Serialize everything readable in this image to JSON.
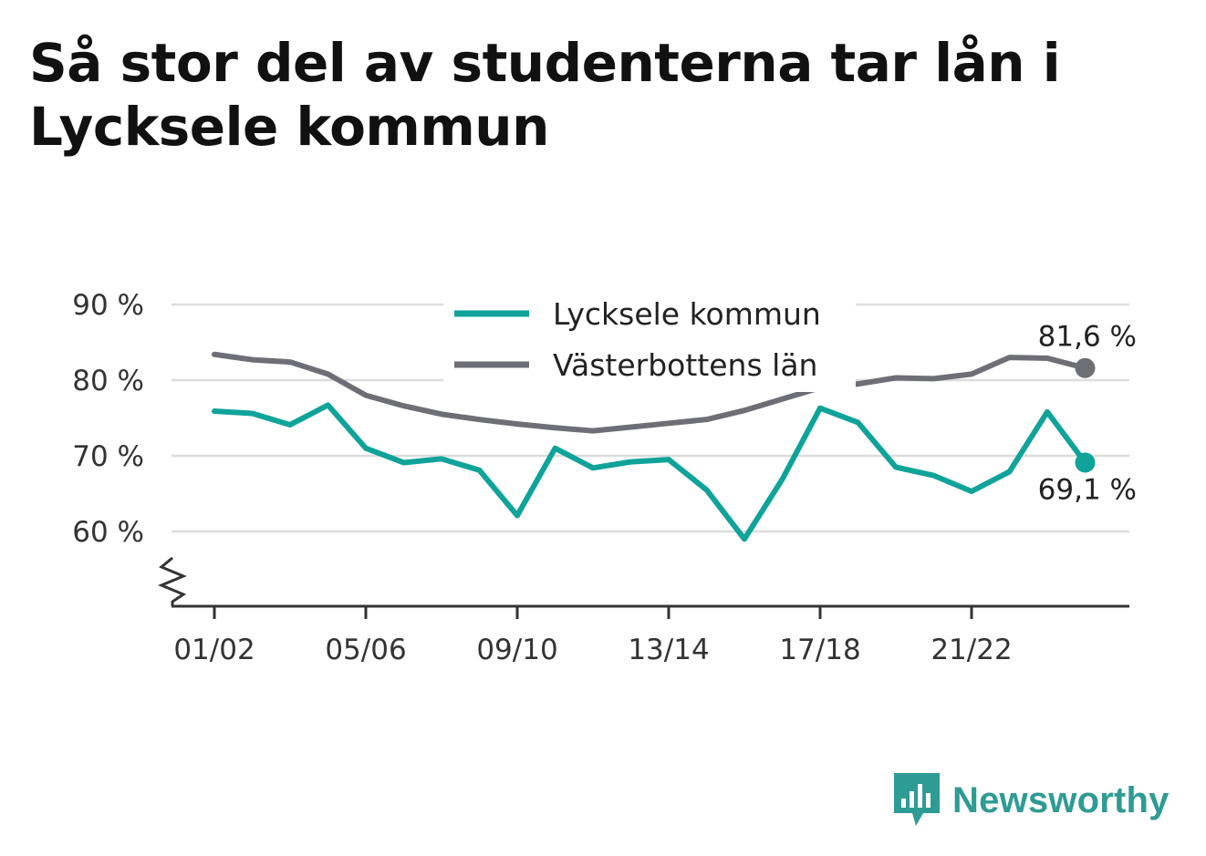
{
  "chart_data": {
    "type": "line",
    "title": "Så stor del av studenterna tar lån i Lycksele kommun",
    "x_tick_labels": [
      "01/02",
      "05/06",
      "09/10",
      "13/14",
      "17/18",
      "21/22"
    ],
    "y_ticks": [
      60,
      70,
      80,
      90
    ],
    "y_tick_labels": [
      "60 %",
      "70 %",
      "80 %",
      "90 %"
    ],
    "ylim": [
      50,
      90
    ],
    "y_axis_break": true,
    "grid": true,
    "legend_position": "top-center",
    "x": [
      "01/02",
      "02/03",
      "03/04",
      "04/05",
      "05/06",
      "06/07",
      "07/08",
      "08/09",
      "09/10",
      "10/11",
      "11/12",
      "12/13",
      "13/14",
      "14/15",
      "15/16",
      "16/17",
      "17/18",
      "18/19",
      "19/20",
      "20/21",
      "21/22",
      "22/23",
      "23/24",
      "24/25"
    ],
    "series": [
      {
        "name": "Lycksele kommun",
        "color": "#0fa39a",
        "values": [
          75.9,
          75.6,
          74.1,
          76.7,
          71.0,
          69.1,
          69.6,
          68.1,
          62.1,
          71.0,
          68.4,
          69.2,
          69.5,
          65.5,
          59.0,
          66.9,
          76.3,
          74.4,
          68.5,
          67.4,
          65.3,
          67.9,
          75.8,
          69.1
        ]
      },
      {
        "name": "Västerbottens län",
        "color": "#6e6e76",
        "values": [
          83.4,
          82.7,
          82.4,
          80.8,
          78.0,
          76.6,
          75.5,
          74.8,
          74.2,
          73.7,
          73.3,
          73.8,
          74.3,
          74.8,
          76.0,
          77.5,
          79.0,
          79.5,
          80.3,
          80.2,
          80.8,
          83.0,
          82.9,
          81.6
        ]
      }
    ],
    "end_labels": {
      "lycksele": "69,1 %",
      "vasterbotten": "81,6 %"
    }
  },
  "logo": {
    "text": "Newsworthy",
    "icon": "bar-chart-speech-bubble-icon",
    "color": "#2e9c94"
  }
}
